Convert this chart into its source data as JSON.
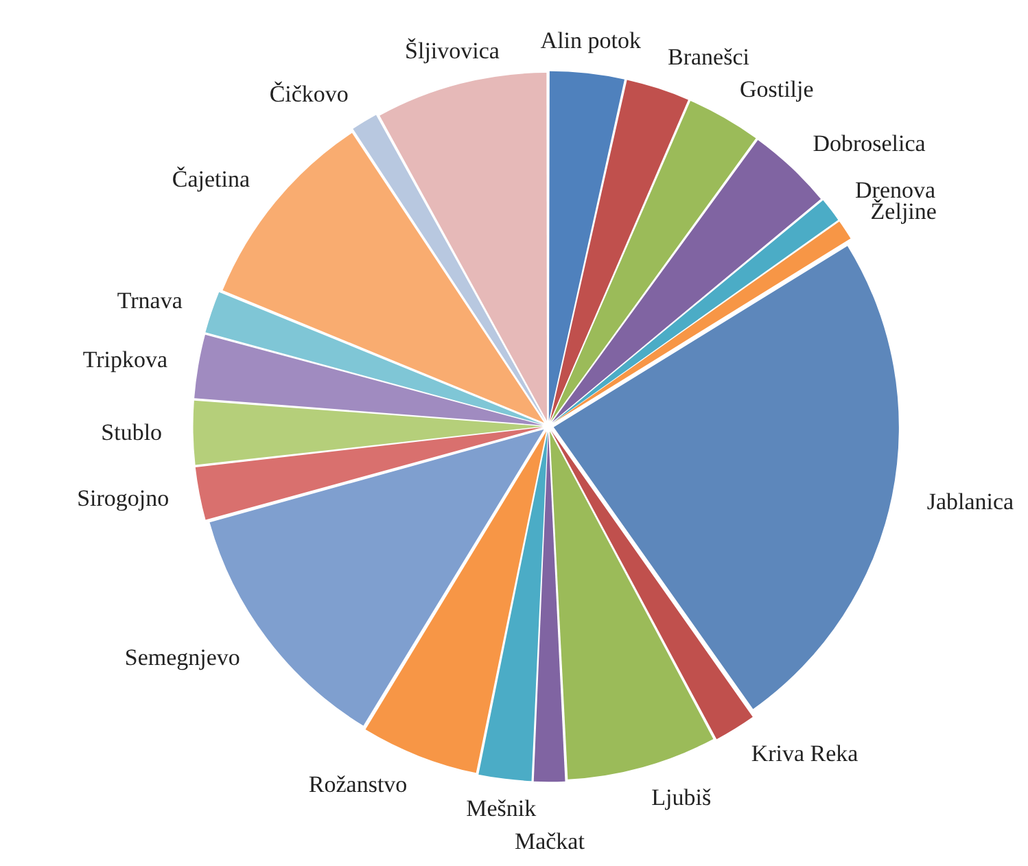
{
  "chart_data": {
    "type": "pie",
    "categories": [
      "Alin potok",
      "Branešci",
      "Gostilje",
      "Dobroselica",
      "Drenova",
      "Željine",
      "Jablanica",
      "Kriva Reka",
      "Ljubiš",
      "Mačkat",
      "Mešnik",
      "Rožanstvo",
      "Semegnjevo",
      "Sirogojno",
      "Stublo",
      "Tripkova",
      "Trnava",
      "Čajetina",
      "Čičkovo",
      "Šljivovica"
    ],
    "values": [
      3.5,
      3,
      3.5,
      4,
      1.2,
      1,
      24,
      2,
      7,
      1.5,
      2.5,
      5.5,
      12,
      2.5,
      3,
      3,
      2,
      9.5,
      1.3,
      8
    ],
    "colors": [
      "#4f81bd",
      "#c0504d",
      "#9bbb59",
      "#8064a2",
      "#4bacc6",
      "#f79646",
      "#5d87bb",
      "#c0504d",
      "#9bbb59",
      "#8064a2",
      "#4bacc6",
      "#f79646",
      "#7f9fcf",
      "#d9706e",
      "#b5cf7a",
      "#a08bc0",
      "#7fc6d6",
      "#f9ac70",
      "#b8c8e0",
      "#e6b9b8"
    ],
    "legend": false
  }
}
